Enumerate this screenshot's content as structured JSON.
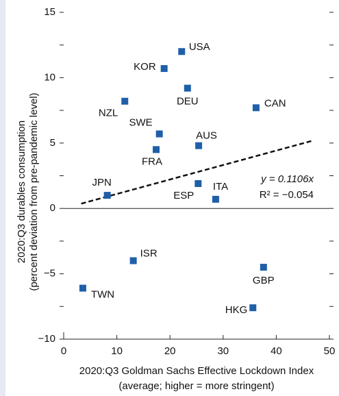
{
  "chart_data": {
    "type": "scatter",
    "xlabel": [
      "2020:Q3 Goldman Sachs Effective Lockdown Index",
      "(average; higher = more stringent)"
    ],
    "ylabel": [
      "2020:Q3 durables consumption",
      "(percent deviation from pre-pandemic level)"
    ],
    "labels": [
      "USA",
      "KOR",
      "DEU",
      "NZL",
      "CAN",
      "SWE",
      "AUS",
      "FRA",
      "JPN",
      "ESP",
      "ITA",
      "ISR",
      "GBP",
      "TWN",
      "HKG"
    ],
    "x": [
      22.2,
      18.9,
      23.3,
      11.5,
      36.2,
      18.0,
      25.4,
      17.4,
      8.2,
      25.3,
      28.6,
      13.1,
      37.6,
      3.6,
      35.6
    ],
    "values": [
      12.0,
      10.7,
      9.2,
      8.2,
      7.7,
      5.7,
      4.8,
      4.5,
      1.0,
      1.9,
      0.7,
      -4.0,
      -4.5,
      -6.1,
      -7.6
    ],
    "color": "#1f5fa8",
    "trendline": {
      "slope": 0.1106,
      "xrange": [
        3.3,
        47
      ]
    },
    "annotations": [
      "y = 0.1106x",
      "R² = −0.054"
    ],
    "xlim": [
      0,
      50
    ],
    "xticks": [
      0,
      10,
      20,
      30,
      40,
      50
    ],
    "ylim": [
      -10,
      15
    ],
    "yticks": [
      {
        "value": -10,
        "label": "−10"
      },
      {
        "value": -5,
        "label": "−5"
      },
      0,
      5,
      10,
      15
    ],
    "yminor_ticks": [
      -7.5,
      -2.5,
      2.5,
      7.5,
      12.5
    ]
  }
}
